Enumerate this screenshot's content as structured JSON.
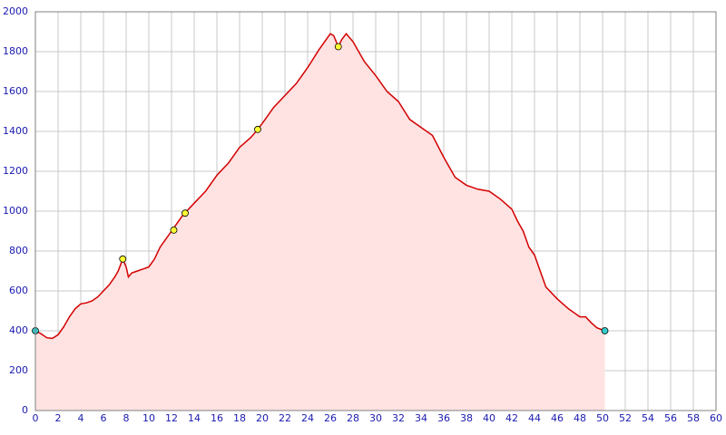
{
  "chart_data": {
    "type": "area",
    "x": [
      0,
      0.5,
      1,
      1.5,
      2,
      2.5,
      3,
      3.5,
      4,
      4.5,
      5,
      5.5,
      6,
      6.5,
      7,
      7.3,
      7.7,
      8,
      8.2,
      8.5,
      9,
      9.5,
      10,
      10.5,
      11,
      11.5,
      12,
      12.5,
      13,
      13.5,
      14,
      14.5,
      15,
      16,
      17,
      18,
      19,
      19.6,
      20,
      21,
      22,
      23,
      24,
      25,
      26,
      26.3,
      26.7,
      27,
      27.4,
      28,
      29,
      30,
      31,
      32,
      33,
      34,
      35,
      36,
      37,
      37.5,
      38,
      39,
      40,
      41,
      42,
      42.5,
      43,
      43.5,
      44,
      44.5,
      45,
      46,
      47,
      48,
      48.5,
      49,
      49.5,
      50.2
    ],
    "series": [
      {
        "color": "#d40000",
        "fill": "#ffe2e2",
        "values": [
          400,
          385,
          365,
          362,
          380,
          420,
          470,
          510,
          535,
          540,
          550,
          570,
          600,
          630,
          670,
          700,
          760,
          720,
          670,
          690,
          700,
          710,
          720,
          760,
          820,
          860,
          900,
          940,
          980,
          1010,
          1040,
          1070,
          1100,
          1180,
          1240,
          1320,
          1370,
          1410,
          1440,
          1520,
          1580,
          1640,
          1720,
          1810,
          1890,
          1880,
          1825,
          1860,
          1890,
          1850,
          1750,
          1680,
          1600,
          1550,
          1460,
          1420,
          1380,
          1270,
          1170,
          1150,
          1130,
          1110,
          1100,
          1060,
          1010,
          950,
          900,
          820,
          780,
          700,
          620,
          560,
          510,
          470,
          470,
          440,
          415,
          400
        ]
      }
    ],
    "markers": [
      {
        "x": 0,
        "y": 400,
        "color": "#33cccc"
      },
      {
        "x": 7.7,
        "y": 760,
        "color": "#ffff33"
      },
      {
        "x": 12.2,
        "y": 905,
        "color": "#ffff33"
      },
      {
        "x": 13.2,
        "y": 990,
        "color": "#ffff33"
      },
      {
        "x": 19.6,
        "y": 1410,
        "color": "#ffff33"
      },
      {
        "x": 26.7,
        "y": 1825,
        "color": "#ffff33"
      },
      {
        "x": 50.2,
        "y": 400,
        "color": "#33cccc"
      }
    ],
    "xlim": [
      0,
      60
    ],
    "xticks": [
      0,
      2,
      4,
      6,
      8,
      10,
      12,
      14,
      16,
      18,
      20,
      22,
      24,
      26,
      28,
      30,
      32,
      34,
      36,
      38,
      40,
      42,
      44,
      46,
      48,
      50,
      52,
      54,
      56,
      58,
      60
    ],
    "ylim": [
      0,
      2000
    ],
    "yticks": [
      0,
      200,
      400,
      600,
      800,
      1000,
      1200,
      1400,
      1600,
      1800,
      2000
    ],
    "grid": true
  }
}
